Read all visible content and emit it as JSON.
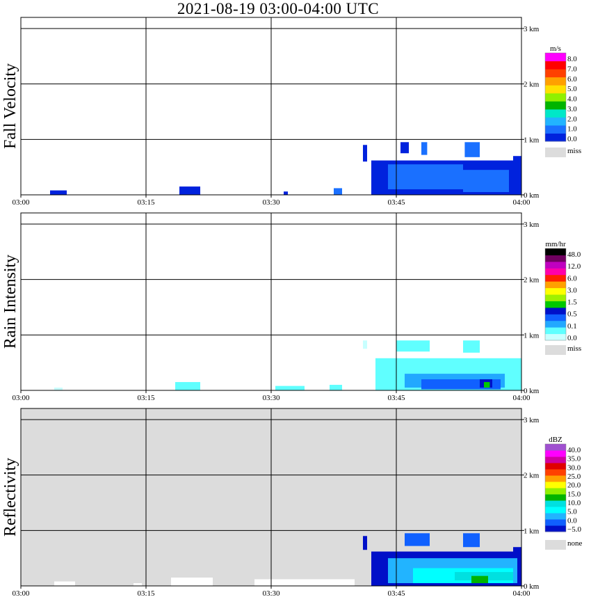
{
  "title": "2021-08-19   03:00-04:00 UTC",
  "chart_data": [
    {
      "type": "heatmap",
      "panel_label": "Fall Velocity",
      "x_ticks": [
        "03:00",
        "03:15",
        "03:30",
        "03:45",
        "04:00"
      ],
      "y_ticks": [
        "0 km",
        "1 km",
        "2 km",
        "3 km"
      ],
      "ylim_km": [
        0,
        3.2
      ],
      "background": "#ffffff",
      "colorbar": {
        "unit": "m/s",
        "colors": [
          "#0022dd",
          "#1a70ff",
          "#22b4ff",
          "#00e8c8",
          "#00b400",
          "#90f000",
          "#ffe000",
          "#ffa000",
          "#ff4000",
          "#ff0000",
          "#ff00ff"
        ],
        "labels": [
          "8.0",
          "7.0",
          "6.0",
          "5.0",
          "4.0",
          "3.0",
          "2.0",
          "1.0",
          "0.0"
        ],
        "miss_label": "miss"
      },
      "echo_regions": [
        {
          "t": [
            3.5,
            5.5
          ],
          "h": [
            0.0,
            0.08
          ],
          "level": 0
        },
        {
          "t": [
            19.0,
            21.5
          ],
          "h": [
            0.0,
            0.15
          ],
          "level": 0
        },
        {
          "t": [
            31.5,
            32.0
          ],
          "h": [
            0.0,
            0.06
          ],
          "level": 0
        },
        {
          "t": [
            37.5,
            38.5
          ],
          "h": [
            0.0,
            0.12
          ],
          "level": 1
        },
        {
          "t": [
            42.0,
            60.0
          ],
          "h": [
            0.0,
            0.62
          ],
          "level": 0
        },
        {
          "t": [
            44.0,
            53.0
          ],
          "h": [
            0.1,
            0.55
          ],
          "level": 1
        },
        {
          "t": [
            53.0,
            58.5
          ],
          "h": [
            0.05,
            0.45
          ],
          "level": 1
        },
        {
          "t": [
            41.0,
            41.5
          ],
          "h": [
            0.6,
            0.9
          ],
          "level": 0
        },
        {
          "t": [
            45.5,
            46.5
          ],
          "h": [
            0.75,
            0.95
          ],
          "level": 0
        },
        {
          "t": [
            48.0,
            48.7
          ],
          "h": [
            0.72,
            0.95
          ],
          "level": 1
        },
        {
          "t": [
            53.2,
            55.0
          ],
          "h": [
            0.68,
            0.95
          ],
          "level": 1
        },
        {
          "t": [
            59.0,
            60.0
          ],
          "h": [
            0.55,
            0.7
          ],
          "level": 0
        }
      ]
    },
    {
      "type": "heatmap",
      "panel_label": "Rain Intensity",
      "x_ticks": [
        "03:00",
        "03:15",
        "03:30",
        "03:45",
        "04:00"
      ],
      "y_ticks": [
        "0 km",
        "1 km",
        "2 km",
        "3 km"
      ],
      "ylim_km": [
        0,
        3.2
      ],
      "background": "#ffffff",
      "colorbar": {
        "unit": "mm/hr",
        "colors": [
          "#c8ffff",
          "#60ffff",
          "#22a8ff",
          "#1060ff",
          "#0010c8",
          "#00c800",
          "#a0f000",
          "#ffff00",
          "#ffa000",
          "#ff2000",
          "#ff00aa",
          "#c000c0",
          "#700060",
          "#000000"
        ],
        "labels": [
          "48.0",
          "12.0",
          "6.0",
          "3.0",
          "1.5",
          "0.5",
          "0.1",
          "0.0"
        ],
        "miss_label": "miss"
      },
      "echo_regions": [
        {
          "t": [
            4.0,
            5.0
          ],
          "h": [
            0.0,
            0.05
          ],
          "level": 0
        },
        {
          "t": [
            18.5,
            21.5
          ],
          "h": [
            0.0,
            0.15
          ],
          "level": 1
        },
        {
          "t": [
            30.5,
            34.0
          ],
          "h": [
            0.0,
            0.08
          ],
          "level": 1
        },
        {
          "t": [
            37.0,
            38.5
          ],
          "h": [
            0.0,
            0.1
          ],
          "level": 1
        },
        {
          "t": [
            42.5,
            60.0
          ],
          "h": [
            0.0,
            0.58
          ],
          "level": 1
        },
        {
          "t": [
            46.0,
            58.0
          ],
          "h": [
            0.05,
            0.3
          ],
          "level": 2
        },
        {
          "t": [
            48.0,
            57.5
          ],
          "h": [
            0.02,
            0.2
          ],
          "level": 3
        },
        {
          "t": [
            55.0,
            56.5
          ],
          "h": [
            0.05,
            0.2
          ],
          "level": 4
        },
        {
          "t": [
            55.5,
            56.2
          ],
          "h": [
            0.05,
            0.15
          ],
          "level": 5
        },
        {
          "t": [
            45.0,
            49.0
          ],
          "h": [
            0.7,
            0.9
          ],
          "level": 1
        },
        {
          "t": [
            53.0,
            55.0
          ],
          "h": [
            0.68,
            0.9
          ],
          "level": 1
        },
        {
          "t": [
            41.0,
            41.5
          ],
          "h": [
            0.75,
            0.9
          ],
          "level": 0
        }
      ]
    },
    {
      "type": "heatmap",
      "panel_label": "Reflectivity",
      "x_ticks": [
        "03:00",
        "03:15",
        "03:30",
        "03:45",
        "04:00"
      ],
      "y_ticks": [
        "0 km",
        "1 km",
        "2 km",
        "3 km"
      ],
      "ylim_km": [
        0,
        3.2
      ],
      "background": "#dcdcdc",
      "colorbar": {
        "unit": "dBZ",
        "colors": [
          "#0010c8",
          "#1060ff",
          "#22b4ff",
          "#00ffff",
          "#00e0e0",
          "#00b400",
          "#90f000",
          "#ffff00",
          "#ffa000",
          "#ff4000",
          "#e00000",
          "#d000a0",
          "#ff00ff",
          "#a050d0"
        ],
        "labels": [
          "40.0",
          "35.0",
          "30.0",
          "25.0",
          "20.0",
          "15.0",
          "10.0",
          "5.0",
          "0.0",
          "−5.0"
        ],
        "miss_label": "none"
      },
      "echo_regions": [
        {
          "t": [
            4.0,
            6.5
          ],
          "h": [
            0.0,
            0.08
          ],
          "level": -1
        },
        {
          "t": [
            13.5,
            14.5
          ],
          "h": [
            0.0,
            0.05
          ],
          "level": -1
        },
        {
          "t": [
            18.0,
            23.0
          ],
          "h": [
            0.0,
            0.15
          ],
          "level": -1
        },
        {
          "t": [
            28.0,
            40.0
          ],
          "h": [
            0.0,
            0.12
          ],
          "level": -1
        },
        {
          "t": [
            42.0,
            60.0
          ],
          "h": [
            0.0,
            0.62
          ],
          "level": 0
        },
        {
          "t": [
            44.0,
            59.5
          ],
          "h": [
            0.05,
            0.5
          ],
          "level": 2
        },
        {
          "t": [
            47.0,
            59.0
          ],
          "h": [
            0.05,
            0.32
          ],
          "level": 3
        },
        {
          "t": [
            52.0,
            59.0
          ],
          "h": [
            0.1,
            0.25
          ],
          "level": 4
        },
        {
          "t": [
            54.0,
            56.0
          ],
          "h": [
            0.05,
            0.18
          ],
          "level": 5
        },
        {
          "t": [
            41.0,
            41.5
          ],
          "h": [
            0.65,
            0.9
          ],
          "level": 0
        },
        {
          "t": [
            46.0,
            49.0
          ],
          "h": [
            0.72,
            0.95
          ],
          "level": 1
        },
        {
          "t": [
            53.0,
            55.0
          ],
          "h": [
            0.7,
            0.95
          ],
          "level": 1
        },
        {
          "t": [
            59.0,
            60.0
          ],
          "h": [
            0.58,
            0.7
          ],
          "level": 0
        }
      ]
    }
  ]
}
